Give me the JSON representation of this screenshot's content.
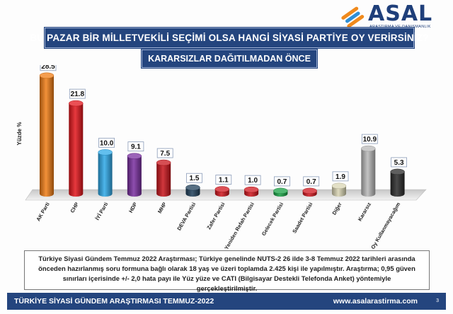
{
  "header": {
    "logo_text": "ASAL",
    "logo_subtitle": "ARAŞTIRMA VE DANIŞMANLIK",
    "title": "BU PAZAR BİR MİLLETVEKİLİ SEÇİMİ OLSA HANGİ SİYASİ PARTİYE OY VERİRSİNİZ?",
    "subtitle": "KARARSIZLAR DAĞITILMADAN ÖNCE"
  },
  "chart_data": {
    "type": "bar",
    "ylabel": "Yüzde %",
    "xlabel": "",
    "categories": [
      "AK Parti",
      "CHP",
      "İYİ Parti",
      "HDP",
      "MHP",
      "DEVA Partisi",
      "Zafer Partisi",
      "Yeniden Refah Partisi",
      "Gelecek Partisi",
      "Saadet Partisi",
      "Diğer",
      "Kararsız",
      "Oy Kullanmayacağım"
    ],
    "values": [
      28.5,
      21.8,
      10.0,
      9.1,
      7.5,
      1.5,
      1.1,
      1.0,
      0.7,
      0.7,
      1.9,
      10.9,
      5.3
    ],
    "value_labels": [
      "28.5",
      "21.8",
      "10.0",
      "9.1",
      "7.5",
      "1.5",
      "1.1",
      "1.0",
      "0.7",
      "0.7",
      "1.9",
      "10.9",
      "5.3"
    ],
    "colors": [
      "#f07d16",
      "#e3161c",
      "#2ea9e8",
      "#7a2fa0",
      "#c8141b",
      "#1f3f5a",
      "#d0161d",
      "#d0161d",
      "#17a043",
      "#d0161d",
      "#d9d5b4",
      "#b8b8b8",
      "#2a2a2a"
    ],
    "ylim": [
      0,
      30
    ],
    "grid": false,
    "legend": "none"
  },
  "note": {
    "text": "Türkiye Siyasi Gündem Temmuz 2022 Araştırması; Türkiye genelinde NUTS-2 26 ilde 3-8 Temmuz 2022 tarihleri arasında önceden hazırlanmış soru formuna bağlı olarak 18 yaş ve üzeri toplamda 2.425 kişi ile yapılmıştır. Araştırma; 0,95 güven sınırları içerisinde +/- 2,0 hata payı ile Yüz yüze ve CATI (Bilgisayar Destekli Telefonda Anket) yöntemiyle gerçekleştirilmiştir."
  },
  "footer": {
    "left": "TÜRKİYE SİYASİ GÜNDEM ARAŞTIRMASI  TEMMUZ-2022",
    "right": "www.asalarastirma.com",
    "page": "3"
  }
}
